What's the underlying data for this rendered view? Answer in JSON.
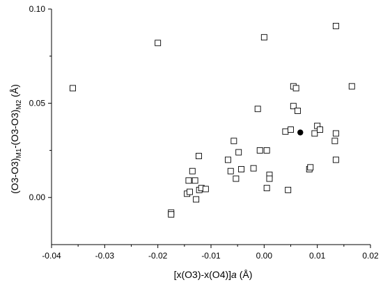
{
  "chart_data": {
    "type": "scatter",
    "title": "",
    "xlabel": {
      "prefix": "[x(O3)-x(O4)]",
      "italic": "a",
      "suffix": " (Å)"
    },
    "ylabel": {
      "part1": "(O3-O3)",
      "sub1": "M1",
      "part2": "-(O3-O3)",
      "sub2": "M2",
      "part3": " (Å)"
    },
    "xlim": [
      -0.04,
      0.02
    ],
    "ylim": [
      -0.025,
      0.1
    ],
    "xticks": [
      -0.04,
      -0.03,
      -0.02,
      -0.01,
      0.0,
      0.01,
      0.02
    ],
    "xtick_labels": [
      "-0.04",
      "-0.03",
      "-0.02",
      "-0.01",
      "0.00",
      "0.01",
      "0.02"
    ],
    "yticks": [
      0.0,
      0.05,
      0.1
    ],
    "ytick_labels": [
      "0.00",
      "0.05",
      "0.10"
    ],
    "grid": false,
    "legend": "none",
    "series": [
      {
        "marker": "open-square",
        "points": [
          [
            -0.036,
            0.058
          ],
          [
            -0.02,
            0.082
          ],
          [
            -0.0175,
            -0.008
          ],
          [
            -0.0175,
            -0.009
          ],
          [
            -0.0145,
            0.002
          ],
          [
            -0.0142,
            0.009
          ],
          [
            -0.014,
            0.003
          ],
          [
            -0.0135,
            0.014
          ],
          [
            -0.013,
            0.009
          ],
          [
            -0.0128,
            -0.001
          ],
          [
            -0.0123,
            0.022
          ],
          [
            -0.0122,
            0.004
          ],
          [
            -0.0118,
            0.005
          ],
          [
            -0.011,
            0.0045
          ],
          [
            -0.0068,
            0.02
          ],
          [
            -0.0063,
            0.014
          ],
          [
            -0.0057,
            0.03
          ],
          [
            -0.0053,
            0.01
          ],
          [
            -0.0048,
            0.024
          ],
          [
            -0.0043,
            0.015
          ],
          [
            -0.002,
            0.0155
          ],
          [
            -0.0012,
            0.047
          ],
          [
            -0.0008,
            0.025
          ],
          [
            0.0,
            0.085
          ],
          [
            0.0005,
            0.025
          ],
          [
            0.0005,
            0.005
          ],
          [
            0.001,
            0.012
          ],
          [
            0.001,
            0.01
          ],
          [
            0.004,
            0.035
          ],
          [
            0.0045,
            0.004
          ],
          [
            0.005,
            0.036
          ],
          [
            0.0055,
            0.059
          ],
          [
            0.0055,
            0.0485
          ],
          [
            0.006,
            0.058
          ],
          [
            0.0063,
            0.046
          ],
          [
            0.0085,
            0.015
          ],
          [
            0.0087,
            0.016
          ],
          [
            0.0095,
            0.034
          ],
          [
            0.01,
            0.038
          ],
          [
            0.0105,
            0.036
          ],
          [
            0.0133,
            0.03
          ],
          [
            0.0135,
            0.034
          ],
          [
            0.0135,
            0.02
          ],
          [
            0.0135,
            0.091
          ],
          [
            0.0165,
            0.059
          ]
        ]
      },
      {
        "marker": "filled-circle",
        "points": [
          [
            0.0068,
            0.0345
          ]
        ]
      }
    ]
  }
}
